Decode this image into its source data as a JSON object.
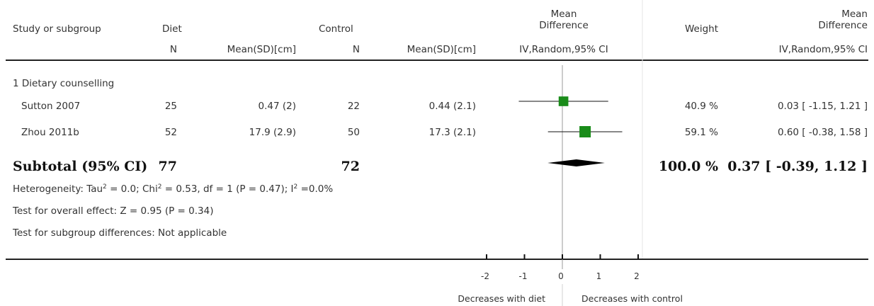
{
  "header": {
    "study_col": "Study or subgroup",
    "diet_col": "Diet",
    "control_col": "Control",
    "md_col_line1": "Mean",
    "md_col_line2": "Difference",
    "weight_col": "Weight",
    "md2_col_line1": "Mean",
    "md2_col_line2": "Difference",
    "n1": "N",
    "mean1": "Mean(SD)[cm]",
    "n2": "N",
    "mean2": "Mean(SD)[cm]",
    "ci1": "IV,Random,95% CI",
    "ci2": "IV,Random,95% CI"
  },
  "group_label": "1 Dietary counselling",
  "studies": [
    {
      "name": "Sutton 2007",
      "n1": "25",
      "mean1": "0.47 (2)",
      "n2": "22",
      "mean2": "0.44 (2.1)",
      "weight": "40.9 %",
      "ci": "0.03 [ -1.15, 1.21 ]"
    },
    {
      "name": "Zhou 2011b",
      "n1": "52",
      "mean1": "17.9 (2.9)",
      "n2": "50",
      "mean2": "17.3 (2.1)",
      "weight": "59.1 %",
      "ci": "0.60 [ -0.38, 1.58 ]"
    }
  ],
  "subtotal": {
    "label": "Subtotal (95% CI)",
    "n1": "77",
    "n2": "72",
    "weight": "100.0 %",
    "ci": "0.37 [ -0.39, 1.12 ]"
  },
  "heterogeneity": {
    "p1": "Heterogeneity: Tau",
    "s1": "2",
    "p2": " = 0.0; Chi",
    "s2": "2",
    "p3": " = 0.53, df = 1 (P = 0.47); I",
    "s3": "2",
    "p4": " =0.0%"
  },
  "overall_effect": "Test for overall effect: Z = 0.95 (P = 0.34)",
  "subgroup_diff": "Test for subgroup differences: Not applicable",
  "footer": {
    "left_label": "Decreases with diet",
    "right_label": "Decreases with control"
  },
  "colors": {
    "marker": "#1a8c1a",
    "diamond": "#000000",
    "text": "#333333"
  },
  "chart_data": {
    "type": "forest",
    "xlim": [
      -2,
      2
    ],
    "xticks": [
      -2,
      -1,
      0,
      1,
      2
    ],
    "tick_labels": [
      "-2",
      "-1",
      "0",
      "1",
      "2"
    ],
    "points": [
      {
        "label": "Sutton 2007",
        "estimate": 0.03,
        "lower": -1.15,
        "upper": 1.21,
        "weight": 40.9
      },
      {
        "label": "Zhou 2011b",
        "estimate": 0.6,
        "lower": -0.38,
        "upper": 1.58,
        "weight": 59.1
      }
    ],
    "pooled": {
      "estimate": 0.37,
      "lower": -0.39,
      "upper": 1.12
    }
  }
}
